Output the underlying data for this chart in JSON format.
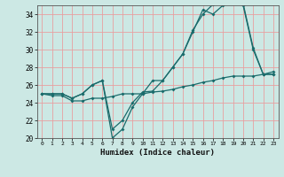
{
  "xlabel": "Humidex (Indice chaleur)",
  "background_color": "#cce8e4",
  "grid_color": "#e8a0a0",
  "line_color": "#1a6b6b",
  "x": [
    0,
    1,
    2,
    3,
    4,
    5,
    6,
    7,
    8,
    9,
    10,
    11,
    12,
    13,
    14,
    15,
    16,
    17,
    18,
    19,
    20,
    21,
    22,
    23
  ],
  "series1": [
    25,
    25,
    25,
    24.5,
    25,
    26,
    26.5,
    20,
    21,
    23.5,
    25,
    26.5,
    26.5,
    28,
    29.5,
    32,
    34.5,
    34,
    35,
    35.3,
    35,
    30,
    27.2,
    27.2
  ],
  "series2": [
    25,
    25,
    25,
    24.5,
    25,
    26,
    26.5,
    21,
    22,
    24,
    25.2,
    25.3,
    26.5,
    28,
    29.5,
    32.2,
    34,
    35.1,
    35.5,
    35.6,
    35.2,
    30.2,
    27.2,
    27.5
  ],
  "series3": [
    25,
    24.8,
    24.8,
    24.2,
    24.2,
    24.5,
    24.5,
    24.7,
    25,
    25,
    25,
    25.2,
    25.3,
    25.5,
    25.8,
    26,
    26.3,
    26.5,
    26.8,
    27,
    27,
    27,
    27.2,
    27.2
  ],
  "ylim": [
    20,
    35
  ],
  "xlim": [
    -0.5,
    23.5
  ],
  "yticks": [
    20,
    22,
    24,
    26,
    28,
    30,
    32,
    34
  ],
  "xticks": [
    0,
    1,
    2,
    3,
    4,
    5,
    6,
    7,
    8,
    9,
    10,
    11,
    12,
    13,
    14,
    15,
    16,
    17,
    18,
    19,
    20,
    21,
    22,
    23
  ]
}
